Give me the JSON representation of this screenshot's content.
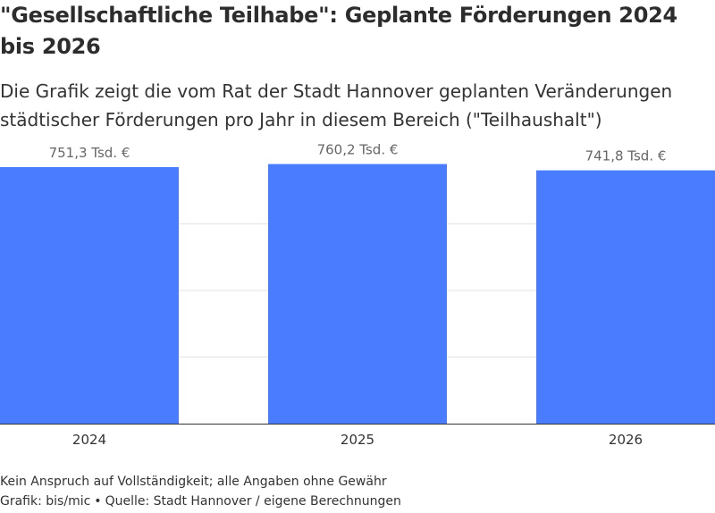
{
  "title": "\"Gesellschaftliche Teilhabe\": Geplante Förderungen 2024 bis 2026",
  "subtitle": "Die Grafik zeigt die vom Rat der Stadt Hannover geplanten Veränderungen städtischer Förderungen pro Jahr in diesem Bereich (\"Teilhaushalt\")",
  "footer": {
    "disclaimer": "Kein Anspruch auf Vollständigkeit; alle Angaben ohne Gewähr",
    "credit": "Grafik: bis/mic",
    "separator": "•",
    "source": "Quelle: Stadt Hannover / eigene Berechnungen"
  },
  "colors": {
    "bar": "#4a7cff",
    "grid": "#e3e3e3",
    "axis": "#333333",
    "label": "#666666"
  },
  "chart_data": {
    "type": "bar",
    "categories": [
      "2024",
      "2025",
      "2026"
    ],
    "values": [
      751.3,
      760.2,
      741.8
    ],
    "value_labels": [
      "751,3 Tsd. €",
      "760,2 Tsd. €",
      "741,8 Tsd. €"
    ],
    "unit": "Tsd. €",
    "ylim": [
      0,
      780
    ],
    "gridlines": [
      0,
      195,
      390,
      585
    ],
    "grid": true,
    "legend": "none"
  }
}
